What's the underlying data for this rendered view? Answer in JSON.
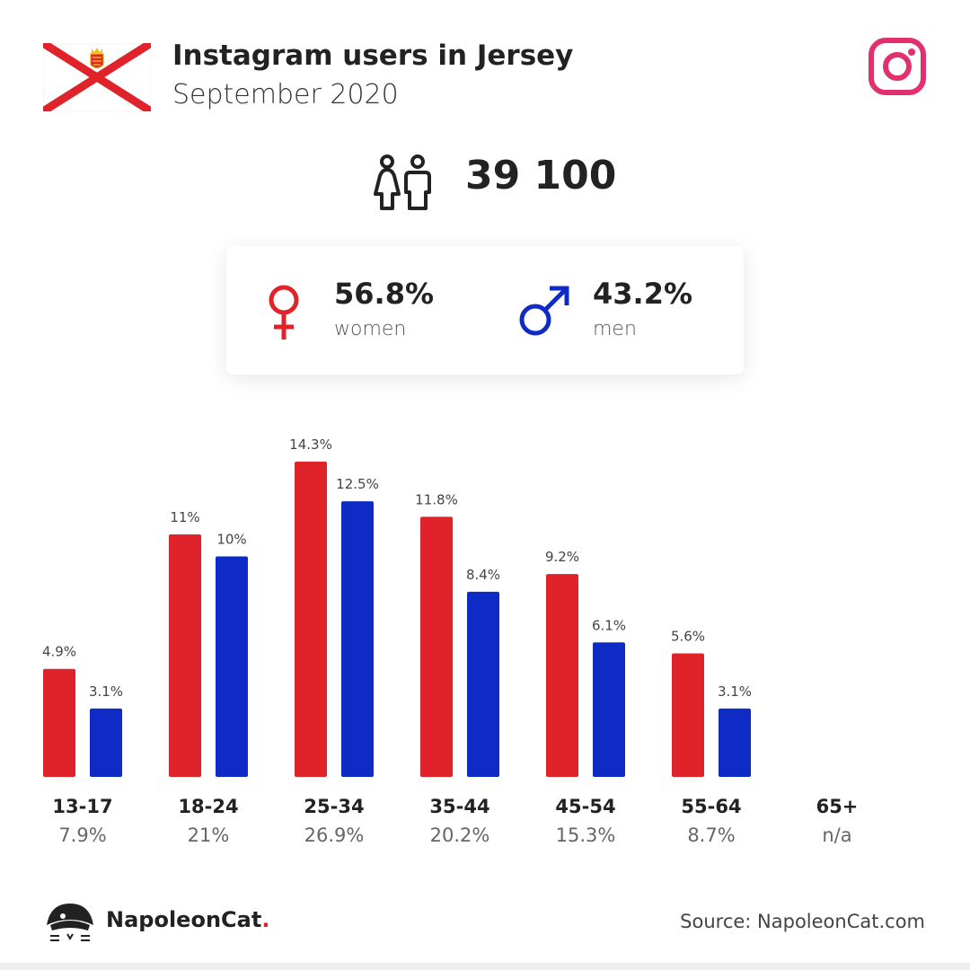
{
  "header": {
    "title": "Instagram users in Jersey",
    "subtitle": "September 2020",
    "flag_icon": "jersey-flag-icon",
    "platform_icon": "instagram-icon"
  },
  "total": {
    "value": "39 100",
    "icon": "people-icon"
  },
  "gender": {
    "women": {
      "percent": "56.8%",
      "label": "women",
      "icon": "female-symbol-icon"
    },
    "men": {
      "percent": "43.2%",
      "label": "men",
      "icon": "male-symbol-icon"
    }
  },
  "chart_data": {
    "type": "bar",
    "categories": [
      "13-17",
      "18-24",
      "25-34",
      "35-44",
      "45-54",
      "55-64",
      "65+"
    ],
    "category_totals": [
      "7.9%",
      "21%",
      "26.9%",
      "20.2%",
      "15.3%",
      "8.7%",
      "n/a"
    ],
    "series": [
      {
        "values": [
          4.9,
          11,
          14.3,
          11.8,
          9.2,
          5.6,
          null
        ],
        "labels": [
          "4.9%",
          "11%",
          "14.3%",
          "11.8%",
          "9.2%",
          "5.6%",
          ""
        ],
        "color": "#e0222a"
      },
      {
        "values": [
          3.1,
          10,
          12.5,
          8.4,
          6.1,
          3.1,
          null
        ],
        "labels": [
          "3.1%",
          "10%",
          "12.5%",
          "8.4%",
          "6.1%",
          "3.1%",
          ""
        ],
        "color": "#0f2bc5"
      }
    ],
    "ylim": [
      0,
      14.3
    ],
    "grid": false
  },
  "footer": {
    "brand_name": "NapoleonCat",
    "brand_dot": ".",
    "brand_icon": "napoleoncat-logo-icon",
    "source": "Source: NapoleonCat.com"
  },
  "colors": {
    "women": "#e0222a",
    "men": "#0f2bc5",
    "instagram": "#e1306c"
  }
}
